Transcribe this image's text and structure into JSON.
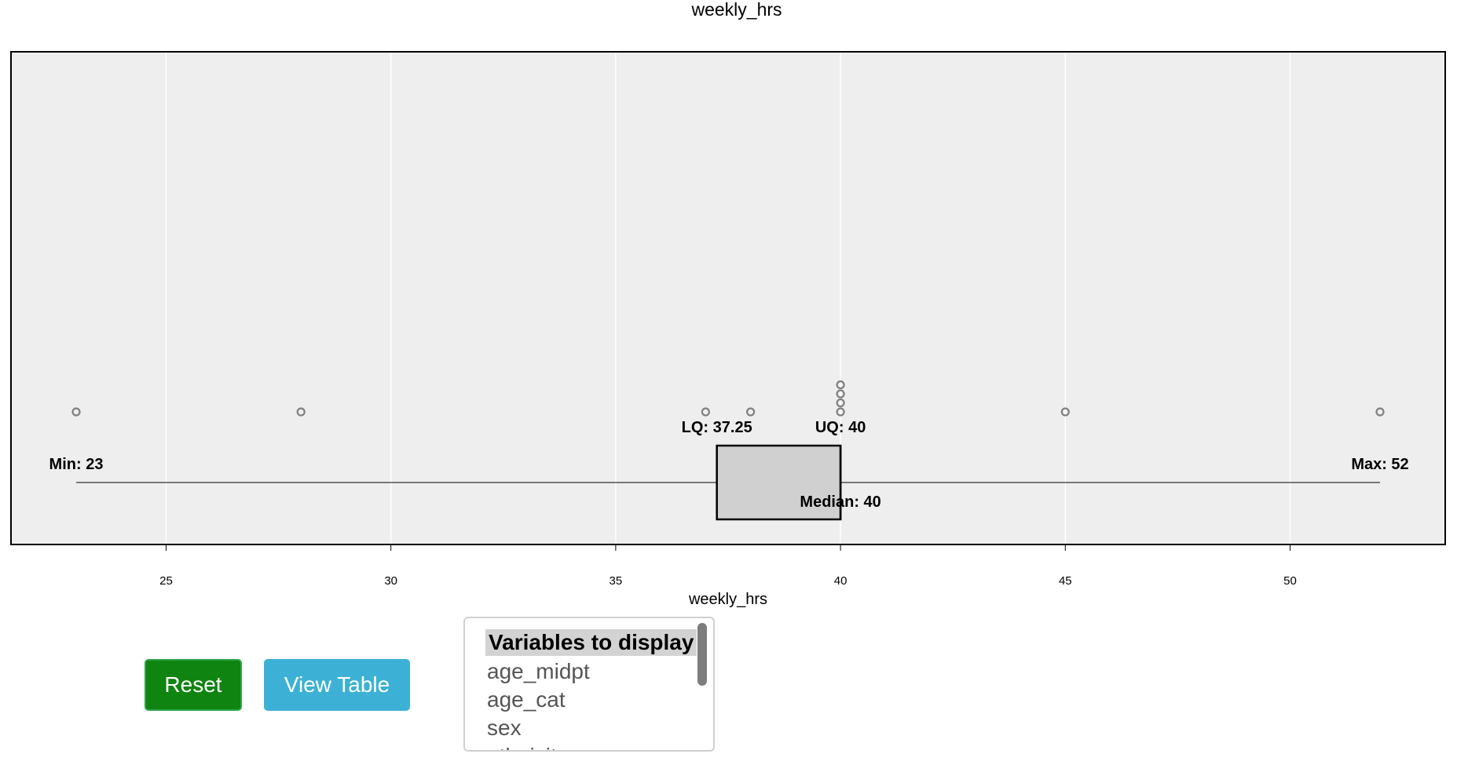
{
  "chart_data": {
    "type": "boxplot",
    "title": "weekly_hrs",
    "xlabel": "weekly_hrs",
    "xlim": [
      21.55,
      53.45
    ],
    "ticks": [
      25,
      30,
      35,
      40,
      45,
      50
    ],
    "stats": {
      "min": 23,
      "lq": 37.25,
      "median": 40,
      "uq": 40,
      "max": 52
    },
    "stat_labels": {
      "min": "Min: 23",
      "lq": "LQ: 37.25",
      "median": "Median: 40",
      "uq": "UQ: 40",
      "max": "Max: 52"
    },
    "points": [
      {
        "x": 23,
        "stack": 0
      },
      {
        "x": 28,
        "stack": 0
      },
      {
        "x": 37,
        "stack": 0
      },
      {
        "x": 38,
        "stack": 0
      },
      {
        "x": 40,
        "stack": 0
      },
      {
        "x": 40,
        "stack": 1
      },
      {
        "x": 40,
        "stack": 2
      },
      {
        "x": 40,
        "stack": 3
      },
      {
        "x": 45,
        "stack": 0
      },
      {
        "x": 52,
        "stack": 0
      }
    ],
    "grid": true,
    "colors": {
      "panel": "#eeeeee",
      "box": "#d0d0d0",
      "points": "#808080",
      "grid": "#ffffff"
    }
  },
  "controls": {
    "reset_label": "Reset",
    "view_table_label": "View Table",
    "reset_color": "#108410",
    "view_table_color": "#3cb1d5"
  },
  "variables": {
    "header": "Variables to display",
    "items": [
      "age_midpt",
      "age_cat",
      "sex",
      "ethnicity"
    ]
  }
}
